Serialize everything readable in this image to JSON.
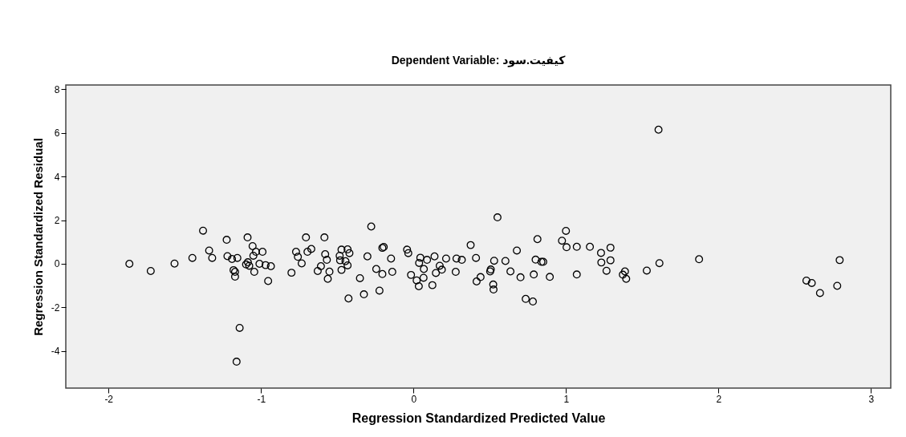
{
  "chart_data": {
    "type": "scatter",
    "title": "Dependent Variable: کیفیت.سود",
    "xlabel": "Regression Standardized Predicted Value",
    "ylabel": "Regression Standardized Residual",
    "marker": "circle",
    "grid": false,
    "xlim": [
      -2.28,
      3.13
    ],
    "ylim": [
      -5.7,
      8.2
    ],
    "xticks": [
      -2,
      -1,
      0,
      1,
      2,
      3
    ],
    "yticks": [
      -4,
      -2,
      0,
      2,
      4,
      6,
      8
    ],
    "series": [
      {
        "color": "#000000",
        "x": [
          -1.863,
          -1.723,
          -1.567,
          -1.45,
          -1.38,
          -1.34,
          -1.32,
          -1.225,
          -1.22,
          -1.19,
          -1.155,
          -1.18,
          -1.17,
          -1.17,
          -1.088,
          -1.055,
          -1.033,
          -1.05,
          -1.086,
          -1.077,
          -1.098,
          -0.99,
          -1.01,
          -0.97,
          -1.044,
          -0.935,
          -0.953,
          -1.14,
          -1.16,
          -0.8,
          -0.705,
          -0.77,
          -0.758,
          -0.733,
          -0.695,
          -0.67,
          -0.584,
          -0.579,
          -0.568,
          -0.607,
          -0.628,
          -0.551,
          -0.562,
          -0.472,
          -0.432,
          -0.42,
          -0.484,
          -0.481,
          -0.446,
          -0.432,
          -0.472,
          -0.426,
          -0.351,
          -0.325,
          -0.302,
          -0.277,
          -0.244,
          -0.204,
          -0.223,
          -0.204,
          -0.195,
          -0.147,
          -0.139,
          -0.042,
          -0.034,
          -0.016,
          0.021,
          0.035,
          0.045,
          0.037,
          0.089,
          0.068,
          0.066,
          0.124,
          0.138,
          0.172,
          0.186,
          0.147,
          0.214,
          0.277,
          0.282,
          0.317,
          0.375,
          0.41,
          0.414,
          0.44,
          0.551,
          0.507,
          0.503,
          0.523,
          0.525,
          0.529,
          0.603,
          0.636,
          0.678,
          0.702,
          0.736,
          0.783,
          0.789,
          0.813,
          0.801,
          0.839,
          0.851,
          0.894,
          0.974,
          1.0,
          1.004,
          1.071,
          1.071,
          1.157,
          1.23,
          1.292,
          1.232,
          1.292,
          1.266,
          1.387,
          1.373,
          1.395,
          1.53,
          1.613,
          1.607,
          1.873,
          2.577,
          2.612,
          2.666,
          2.779,
          2.795
        ],
        "values": [
          0.0,
          -0.33,
          0.01,
          0.27,
          1.52,
          0.61,
          0.27,
          1.1,
          0.35,
          0.22,
          0.27,
          -0.29,
          -0.37,
          -0.59,
          1.21,
          0.81,
          0.55,
          0.37,
          0.07,
          -0.09,
          -0.03,
          0.55,
          0.0,
          -0.06,
          -0.37,
          -0.11,
          -0.79,
          -2.94,
          -4.49,
          -0.41,
          1.21,
          0.55,
          0.32,
          0.02,
          0.55,
          0.68,
          1.21,
          0.44,
          0.18,
          -0.11,
          -0.33,
          -0.36,
          -0.69,
          0.65,
          0.66,
          0.49,
          0.37,
          0.16,
          0.12,
          -0.07,
          -0.28,
          -1.59,
          -0.66,
          -1.4,
          0.34,
          1.71,
          -0.24,
          -0.47,
          -1.23,
          0.73,
          0.77,
          0.24,
          -0.37,
          0.65,
          0.49,
          -0.51,
          -0.76,
          -1.03,
          0.28,
          0.04,
          0.18,
          -0.24,
          -0.64,
          -0.98,
          0.34,
          -0.09,
          -0.27,
          -0.42,
          0.24,
          -0.37,
          0.24,
          0.18,
          0.86,
          0.27,
          -0.81,
          -0.61,
          2.13,
          -0.26,
          -0.35,
          -0.95,
          -1.18,
          0.14,
          0.13,
          -0.35,
          0.61,
          -0.62,
          -1.61,
          -1.73,
          -0.49,
          1.13,
          0.19,
          0.09,
          0.09,
          -0.6,
          1.06,
          1.51,
          0.76,
          0.78,
          -0.49,
          0.78,
          0.5,
          0.74,
          0.06,
          0.16,
          -0.32,
          -0.35,
          -0.5,
          -0.69,
          -0.31,
          0.03,
          6.15,
          0.21,
          -0.77,
          -0.88,
          -1.34,
          -1.01,
          0.17
        ]
      }
    ]
  }
}
